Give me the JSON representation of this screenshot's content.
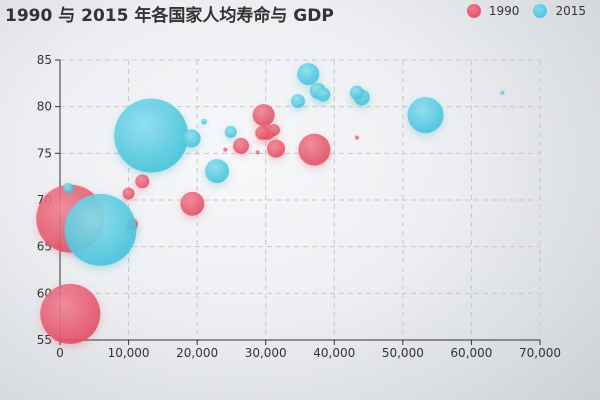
{
  "title": "1990 与 2015 年各国家人均寿命与 GDP",
  "legend": [
    {
      "label": "1990",
      "color": "#e8536a"
    },
    {
      "label": "2015",
      "color": "#4fc9e0"
    }
  ],
  "chart_data": {
    "type": "scatter",
    "subtype": "bubble",
    "title": "1990 与 2015 年各国家人均寿命与 GDP",
    "xlabel": "",
    "ylabel": "",
    "xlim": [
      0,
      70000
    ],
    "ylim": [
      55,
      85
    ],
    "x_ticks": [
      "0",
      "10,000",
      "20,000",
      "30,000",
      "40,000",
      "50,000",
      "60,000",
      "70,000"
    ],
    "y_ticks": [
      "55",
      "60",
      "65",
      "70",
      "75",
      "80",
      "85"
    ],
    "grid": true,
    "legend_position": "top-right",
    "series": [
      {
        "name": "1990",
        "color": "#e8536a",
        "points": [
          {
            "x": 1500,
            "y": 68.0,
            "r": 34
          },
          {
            "x": 1500,
            "y": 57.8,
            "r": 30
          },
          {
            "x": 19300,
            "y": 69.6,
            "r": 12
          },
          {
            "x": 37100,
            "y": 75.4,
            "r": 16
          },
          {
            "x": 29700,
            "y": 79.1,
            "r": 11
          },
          {
            "x": 29500,
            "y": 77.2,
            "r": 7
          },
          {
            "x": 30200,
            "y": 77.3,
            "r": 8
          },
          {
            "x": 31200,
            "y": 77.5,
            "r": 6
          },
          {
            "x": 26400,
            "y": 75.8,
            "r": 8
          },
          {
            "x": 31500,
            "y": 75.5,
            "r": 9
          },
          {
            "x": 12000,
            "y": 72.0,
            "r": 7
          },
          {
            "x": 10000,
            "y": 70.7,
            "r": 6
          },
          {
            "x": 10500,
            "y": 67.4,
            "r": 6
          },
          {
            "x": 24100,
            "y": 75.4,
            "r": 2
          },
          {
            "x": 28800,
            "y": 75.1,
            "r": 2
          },
          {
            "x": 43300,
            "y": 76.7,
            "r": 2
          }
        ]
      },
      {
        "name": "2015",
        "color": "#4fc9e0",
        "points": [
          {
            "x": 13300,
            "y": 76.9,
            "r": 37
          },
          {
            "x": 5900,
            "y": 66.8,
            "r": 36
          },
          {
            "x": 53300,
            "y": 79.1,
            "r": 18
          },
          {
            "x": 36200,
            "y": 83.5,
            "r": 11
          },
          {
            "x": 37600,
            "y": 81.7,
            "r": 8
          },
          {
            "x": 38400,
            "y": 81.3,
            "r": 7
          },
          {
            "x": 34700,
            "y": 80.6,
            "r": 7
          },
          {
            "x": 43300,
            "y": 81.5,
            "r": 7
          },
          {
            "x": 44000,
            "y": 81.0,
            "r": 8
          },
          {
            "x": 22900,
            "y": 73.1,
            "r": 12
          },
          {
            "x": 19200,
            "y": 76.6,
            "r": 9
          },
          {
            "x": 24900,
            "y": 77.3,
            "r": 6
          },
          {
            "x": 21000,
            "y": 78.4,
            "r": 3
          },
          {
            "x": 1200,
            "y": 71.3,
            "r": 5
          },
          {
            "x": 64500,
            "y": 81.5,
            "r": 2
          },
          {
            "x": 13500,
            "y": 74.7,
            "r": 2
          }
        ]
      }
    ]
  }
}
